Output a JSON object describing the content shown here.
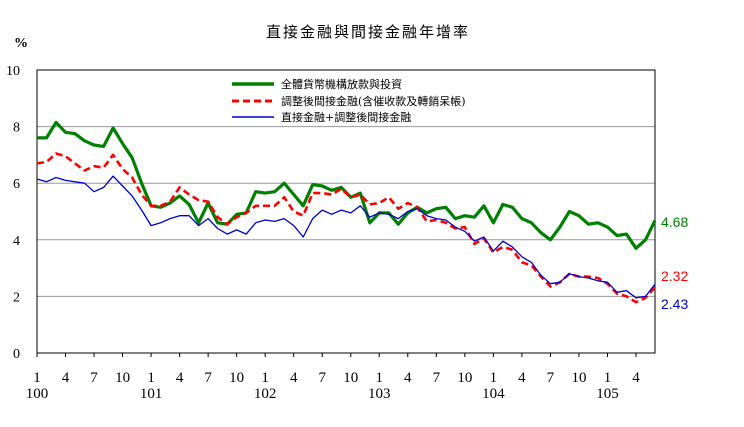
{
  "chart_data": {
    "type": "line",
    "title": "直接金融與間接金融年增率",
    "unit": "%",
    "ylim": [
      0,
      10
    ],
    "yticks": [
      "0",
      "2",
      "4",
      "6",
      "8",
      "10"
    ],
    "grid": true,
    "x_tick_labels": [
      {
        "index": 0,
        "label": "1"
      },
      {
        "index": 3,
        "label": "4"
      },
      {
        "index": 6,
        "label": "7"
      },
      {
        "index": 9,
        "label": "10"
      },
      {
        "index": 12,
        "label": "1"
      },
      {
        "index": 15,
        "label": "4"
      },
      {
        "index": 18,
        "label": "7"
      },
      {
        "index": 21,
        "label": "10"
      },
      {
        "index": 24,
        "label": "1"
      },
      {
        "index": 27,
        "label": "4"
      },
      {
        "index": 30,
        "label": "7"
      },
      {
        "index": 33,
        "label": "10"
      },
      {
        "index": 36,
        "label": "1"
      },
      {
        "index": 39,
        "label": "4"
      },
      {
        "index": 42,
        "label": "7"
      },
      {
        "index": 45,
        "label": "10"
      },
      {
        "index": 48,
        "label": "1"
      },
      {
        "index": 51,
        "label": "4"
      },
      {
        "index": 54,
        "label": "7"
      },
      {
        "index": 57,
        "label": "10"
      },
      {
        "index": 60,
        "label": "1"
      },
      {
        "index": 63,
        "label": "4"
      }
    ],
    "year_labels": [
      {
        "index": 0,
        "label": "100"
      },
      {
        "index": 12,
        "label": "101"
      },
      {
        "index": 24,
        "label": "102"
      },
      {
        "index": 36,
        "label": "103"
      },
      {
        "index": 48,
        "label": "104"
      },
      {
        "index": 60,
        "label": "105"
      }
    ],
    "series": [
      {
        "name": "全體貨幣機構放款與投資",
        "color": "#008000",
        "style": "solid",
        "end_label": "4.68",
        "values": [
          7.6,
          7.6,
          8.15,
          7.8,
          7.75,
          7.5,
          7.35,
          7.3,
          7.95,
          7.4,
          6.9,
          6.0,
          5.2,
          5.15,
          5.3,
          5.55,
          5.25,
          4.6,
          5.3,
          4.6,
          4.55,
          4.9,
          4.95,
          5.7,
          5.65,
          5.7,
          6.0,
          5.6,
          5.2,
          5.95,
          5.9,
          5.75,
          5.85,
          5.5,
          5.65,
          4.6,
          4.95,
          4.95,
          4.55,
          4.95,
          5.15,
          4.95,
          5.1,
          5.15,
          4.75,
          4.85,
          4.8,
          5.2,
          4.6,
          5.25,
          5.15,
          4.75,
          4.6,
          4.25,
          4.0,
          4.45,
          5.0,
          4.85,
          4.55,
          4.6,
          4.45,
          4.15,
          4.2,
          3.7,
          4.0,
          4.68
        ]
      },
      {
        "name": "調整後間接金融(含催收款及轉銷呆帳)",
        "color": "#ff0000",
        "style": "dashed",
        "end_label": "2.32",
        "values": [
          6.7,
          6.75,
          7.05,
          6.95,
          6.7,
          6.45,
          6.6,
          6.55,
          7.0,
          6.5,
          6.2,
          5.6,
          5.2,
          5.2,
          5.35,
          5.85,
          5.6,
          5.4,
          5.35,
          4.8,
          4.55,
          4.8,
          4.95,
          5.2,
          5.2,
          5.2,
          5.5,
          5.0,
          4.85,
          5.65,
          5.65,
          5.6,
          5.8,
          5.5,
          5.6,
          5.25,
          5.3,
          5.5,
          5.1,
          5.3,
          5.15,
          4.65,
          4.7,
          4.6,
          4.4,
          4.45,
          3.85,
          4.05,
          3.55,
          3.75,
          3.65,
          3.2,
          3.1,
          2.7,
          2.35,
          2.5,
          2.8,
          2.7,
          2.7,
          2.65,
          2.45,
          2.1,
          2.0,
          1.8,
          1.95,
          2.32
        ]
      },
      {
        "name": "直接金融+調整後間接金融",
        "color": "#0000cc",
        "style": "solid",
        "end_label": "2.43",
        "values": [
          6.15,
          6.05,
          6.2,
          6.1,
          6.05,
          6.0,
          5.7,
          5.85,
          6.25,
          5.9,
          5.55,
          5.05,
          4.5,
          4.6,
          4.75,
          4.85,
          4.85,
          4.5,
          4.75,
          4.4,
          4.2,
          4.35,
          4.2,
          4.6,
          4.7,
          4.65,
          4.75,
          4.5,
          4.1,
          4.75,
          5.05,
          4.9,
          5.05,
          4.95,
          5.2,
          4.8,
          4.95,
          4.9,
          4.75,
          5.0,
          5.1,
          4.85,
          4.75,
          4.7,
          4.45,
          4.3,
          3.95,
          4.1,
          3.6,
          3.95,
          3.75,
          3.4,
          3.2,
          2.75,
          2.45,
          2.5,
          2.8,
          2.7,
          2.65,
          2.55,
          2.5,
          2.15,
          2.2,
          1.95,
          2.0,
          2.43
        ]
      }
    ]
  }
}
